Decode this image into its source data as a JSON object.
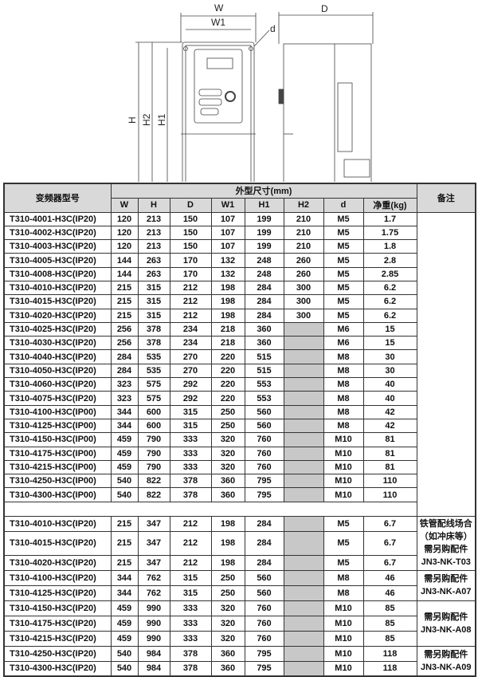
{
  "drawing": {
    "labels": {
      "w": "W",
      "w1": "W1",
      "d_small": "d",
      "d": "D",
      "h": "H",
      "h2": "H2",
      "h1": "H1"
    }
  },
  "table": {
    "header": {
      "model": "变频器型号",
      "dimensions": "外型尺寸(mm)",
      "columns": [
        "W",
        "H",
        "D",
        "W1",
        "H1",
        "H2",
        "d",
        "净重(kg)"
      ],
      "remarks": "备注"
    },
    "rows": [
      [
        "T310-4001-H3C(IP20)",
        "120",
        "213",
        "150",
        "107",
        "199",
        "210",
        "M5",
        "1.7"
      ],
      [
        "T310-4002-H3C(IP20)",
        "120",
        "213",
        "150",
        "107",
        "199",
        "210",
        "M5",
        "1.75"
      ],
      [
        "T310-4003-H3C(IP20)",
        "120",
        "213",
        "150",
        "107",
        "199",
        "210",
        "M5",
        "1.8"
      ],
      [
        "T310-4005-H3C(IP20)",
        "144",
        "263",
        "170",
        "132",
        "248",
        "260",
        "M5",
        "2.8"
      ],
      [
        "T310-4008-H3C(IP20)",
        "144",
        "263",
        "170",
        "132",
        "248",
        "260",
        "M5",
        "2.85"
      ],
      [
        "T310-4010-H3C(IP20)",
        "215",
        "315",
        "212",
        "198",
        "284",
        "300",
        "M5",
        "6.2"
      ],
      [
        "T310-4015-H3C(IP20)",
        "215",
        "315",
        "212",
        "198",
        "284",
        "300",
        "M5",
        "6.2"
      ],
      [
        "T310-4020-H3C(IP20)",
        "215",
        "315",
        "212",
        "198",
        "284",
        "300",
        "M5",
        "6.2"
      ],
      [
        "T310-4025-H3C(IP20)",
        "256",
        "378",
        "234",
        "218",
        "360",
        "",
        "M6",
        "15"
      ],
      [
        "T310-4030-H3C(IP20)",
        "256",
        "378",
        "234",
        "218",
        "360",
        "",
        "M6",
        "15"
      ],
      [
        "T310-4040-H3C(IP20)",
        "284",
        "535",
        "270",
        "220",
        "515",
        "",
        "M8",
        "30"
      ],
      [
        "T310-4050-H3C(IP20)",
        "284",
        "535",
        "270",
        "220",
        "515",
        "",
        "M8",
        "30"
      ],
      [
        "T310-4060-H3C(IP20)",
        "323",
        "575",
        "292",
        "220",
        "553",
        "",
        "M8",
        "40"
      ],
      [
        "T310-4075-H3C(IP20)",
        "323",
        "575",
        "292",
        "220",
        "553",
        "",
        "M8",
        "40"
      ],
      [
        "T310-4100-H3C(IP00)",
        "344",
        "600",
        "315",
        "250",
        "560",
        "",
        "M8",
        "42"
      ],
      [
        "T310-4125-H3C(IP00)",
        "344",
        "600",
        "315",
        "250",
        "560",
        "",
        "M8",
        "42"
      ],
      [
        "T310-4150-H3C(IP00)",
        "459",
        "790",
        "333",
        "320",
        "760",
        "",
        "M10",
        "81"
      ],
      [
        "T310-4175-H3C(IP00)",
        "459",
        "790",
        "333",
        "320",
        "760",
        "",
        "M10",
        "81"
      ],
      [
        "T310-4215-H3C(IP00)",
        "459",
        "790",
        "333",
        "320",
        "760",
        "",
        "M10",
        "81"
      ],
      [
        "T310-4250-H3C(IP00)",
        "540",
        "822",
        "378",
        "360",
        "795",
        "",
        "M10",
        "110"
      ],
      [
        "T310-4300-H3C(IP00)",
        "540",
        "822",
        "378",
        "360",
        "795",
        "",
        "M10",
        "110"
      ]
    ],
    "rows2": [
      [
        "T310-4010-H3C(IP20)",
        "215",
        "347",
        "212",
        "198",
        "284",
        "",
        "M5",
        "6.7"
      ],
      [
        "T310-4015-H3C(IP20)",
        "215",
        "347",
        "212",
        "198",
        "284",
        "",
        "M5",
        "6.7"
      ],
      [
        "T310-4020-H3C(IP20)",
        "215",
        "347",
        "212",
        "198",
        "284",
        "",
        "M5",
        "6.7"
      ],
      [
        "T310-4100-H3C(IP20)",
        "344",
        "762",
        "315",
        "250",
        "560",
        "",
        "M8",
        "46"
      ],
      [
        "T310-4125-H3C(IP20)",
        "344",
        "762",
        "315",
        "250",
        "560",
        "",
        "M8",
        "46"
      ],
      [
        "T310-4150-H3C(IP20)",
        "459",
        "990",
        "333",
        "320",
        "760",
        "",
        "M10",
        "85"
      ],
      [
        "T310-4175-H3C(IP20)",
        "459",
        "990",
        "333",
        "320",
        "760",
        "",
        "M10",
        "85"
      ],
      [
        "T310-4215-H3C(IP20)",
        "459",
        "990",
        "333",
        "320",
        "760",
        "",
        "M10",
        "85"
      ],
      [
        "T310-4250-H3C(IP20)",
        "540",
        "984",
        "378",
        "360",
        "795",
        "",
        "M10",
        "118"
      ],
      [
        "T310-4300-H3C(IP20)",
        "540",
        "984",
        "378",
        "360",
        "795",
        "",
        "M10",
        "118"
      ]
    ],
    "notes": [
      "铁管配线场合（如冲床等）需另购配件JN3-NK-T03",
      "需另购配件JN3-NK-A07",
      "需另购配件JN3-NK-A08",
      "需另购配件JN3-NK-A09"
    ]
  }
}
